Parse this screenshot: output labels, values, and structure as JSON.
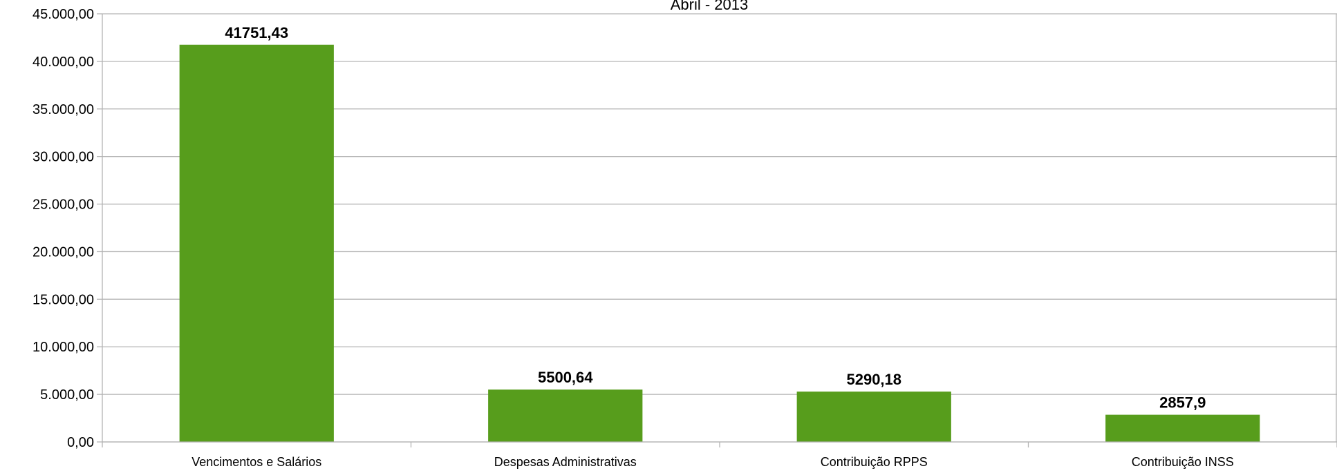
{
  "chart_data": {
    "type": "bar",
    "title": "Abril - 2013",
    "xlabel": "",
    "ylabel": "",
    "categories": [
      "Vencimentos e Salários",
      "Despesas Administrativas",
      "Contribuição RPPS",
      "Contribuição INSS"
    ],
    "values": [
      41751.43,
      5500.64,
      5290.18,
      2857.9
    ],
    "value_labels": [
      "41751,43",
      "5500,64",
      "5290,18",
      "2857,9"
    ],
    "ylim": [
      0,
      45000
    ],
    "yticks": [
      0,
      5000,
      10000,
      15000,
      20000,
      25000,
      30000,
      35000,
      40000,
      45000
    ],
    "ytick_labels": [
      "0,00",
      "5.000,00",
      "10.000,00",
      "15.000,00",
      "20.000,00",
      "25.000,00",
      "30.000,00",
      "35.000,00",
      "40.000,00",
      "45.000,00"
    ],
    "grid": true,
    "legend": "none",
    "colors": {
      "bar": "#579d1c",
      "grid": "#b3b3b3",
      "axis": "#b3b3b3",
      "text": "#000000"
    }
  }
}
